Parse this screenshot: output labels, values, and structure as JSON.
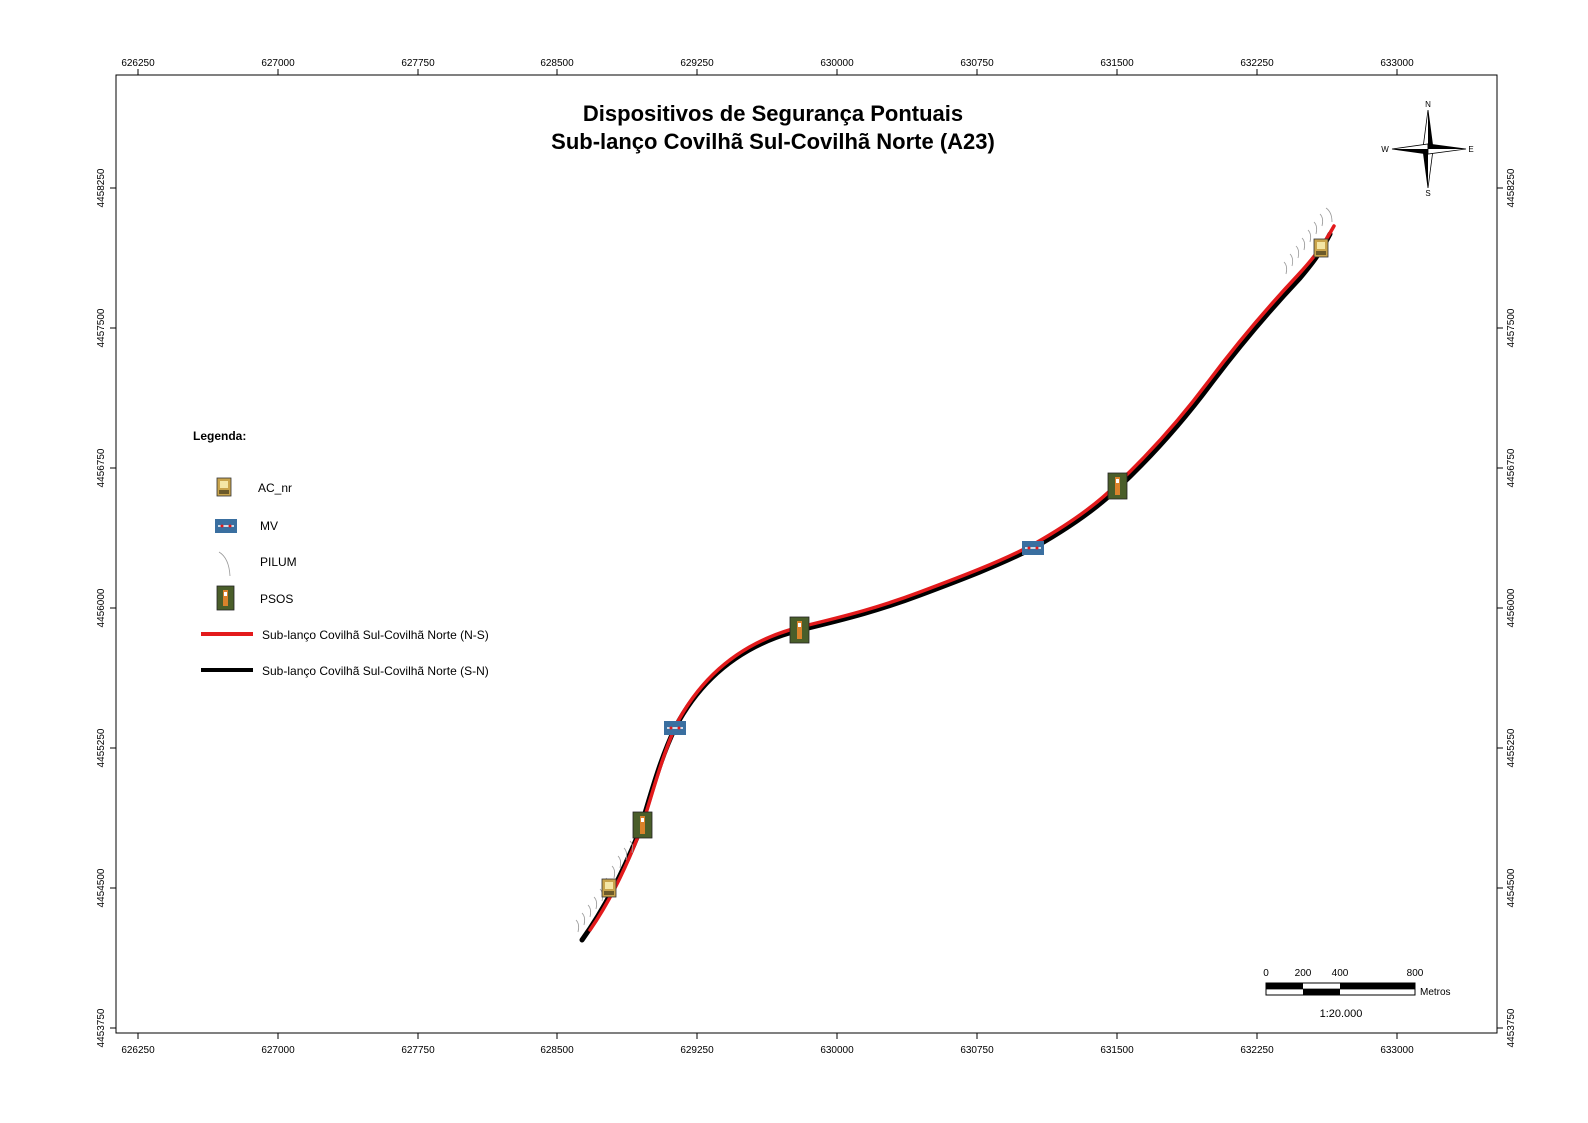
{
  "map": {
    "title_line1": "Dispositivos de Segurança Pontuais",
    "title_line2": "Sub-lanço Covilhã Sul-Covilhã Norte (A23)",
    "x_ticks": [
      "626250",
      "627000",
      "627750",
      "628500",
      "629250",
      "630000",
      "630750",
      "631500",
      "632250",
      "633000"
    ],
    "y_ticks": [
      "4458250",
      "4457500",
      "4456750",
      "4456000",
      "4455250",
      "4454500",
      "4453750"
    ],
    "north_arrow": {
      "n": "N",
      "s": "S",
      "e": "E",
      "w": "W",
      "icon": "north-arrow-icon"
    },
    "legend": {
      "heading": "Legenda:",
      "items": [
        {
          "label": "AC_nr",
          "icon": "ac-nr-icon"
        },
        {
          "label": "MV",
          "icon": "mv-icon"
        },
        {
          "label": "PILUM",
          "icon": "pilum-icon"
        },
        {
          "label": "PSOS",
          "icon": "psos-icon"
        },
        {
          "label": "Sub-lanço Covilhã Sul-Covilhã Norte (N-S)",
          "icon": "line-ns-icon",
          "color": "#e31a1c"
        },
        {
          "label": "Sub-lanço Covilhã Sul-Covilhã Norte (S-N)",
          "icon": "line-sn-icon",
          "color": "#000000"
        }
      ]
    },
    "scale_bar": {
      "labels": [
        "0",
        "200",
        "400",
        "800"
      ],
      "unit": "Metros",
      "ratio": "1:20.000"
    },
    "colors": {
      "route_ns": "#e31a1c",
      "route_sn": "#000000",
      "mv_blue": "#3a6fa0",
      "psos_green": "#4a5e2a"
    }
  }
}
